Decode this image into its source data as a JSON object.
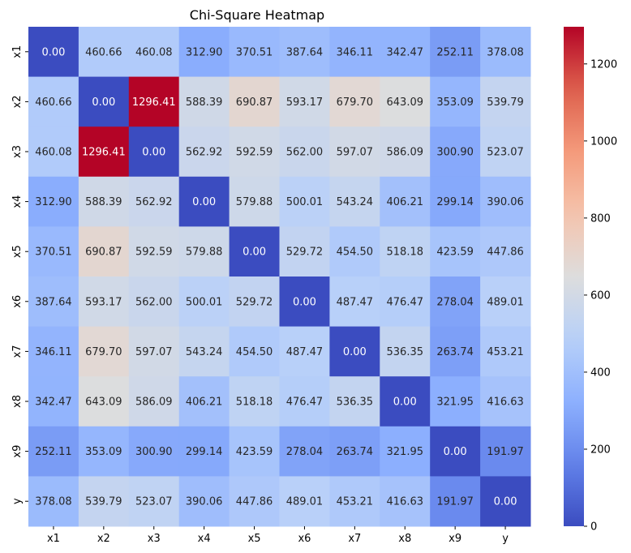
{
  "chart_data": {
    "type": "heatmap",
    "title": "Chi-Square Heatmap",
    "xlabel": "",
    "ylabel": "",
    "x_categories": [
      "x1",
      "x2",
      "x3",
      "x4",
      "x5",
      "x6",
      "x7",
      "x8",
      "x9",
      "y"
    ],
    "y_categories": [
      "x1",
      "x2",
      "x3",
      "x4",
      "x5",
      "x6",
      "x7",
      "x8",
      "x9",
      "y"
    ],
    "values": [
      [
        0.0,
        460.66,
        460.08,
        312.9,
        370.51,
        387.64,
        346.11,
        342.47,
        252.11,
        378.08
      ],
      [
        460.66,
        0.0,
        1296.41,
        588.39,
        690.87,
        593.17,
        679.7,
        643.09,
        353.09,
        539.79
      ],
      [
        460.08,
        1296.41,
        0.0,
        562.92,
        592.59,
        562.0,
        597.07,
        586.09,
        300.9,
        523.07
      ],
      [
        312.9,
        588.39,
        562.92,
        0.0,
        579.88,
        500.01,
        543.24,
        406.21,
        299.14,
        390.06
      ],
      [
        370.51,
        690.87,
        592.59,
        579.88,
        0.0,
        529.72,
        454.5,
        518.18,
        423.59,
        447.86
      ],
      [
        387.64,
        593.17,
        562.0,
        500.01,
        529.72,
        0.0,
        487.47,
        476.47,
        278.04,
        489.01
      ],
      [
        346.11,
        679.7,
        597.07,
        543.24,
        454.5,
        487.47,
        0.0,
        536.35,
        263.74,
        453.21
      ],
      [
        342.47,
        643.09,
        586.09,
        406.21,
        518.18,
        476.47,
        536.35,
        0.0,
        321.95,
        416.63
      ],
      [
        252.11,
        353.09,
        300.9,
        299.14,
        423.59,
        278.04,
        263.74,
        321.95,
        0.0,
        191.97
      ],
      [
        378.08,
        539.79,
        523.07,
        390.06,
        447.86,
        489.01,
        453.21,
        416.63,
        191.97,
        0.0
      ]
    ],
    "value_format": "2 decimals",
    "colormap": "coolwarm",
    "color_range": [
      0,
      1296.41
    ],
    "colorbar_ticks": [
      0,
      200,
      400,
      600,
      800,
      1000,
      1200
    ],
    "grid": false,
    "colorbar_position": "right"
  }
}
